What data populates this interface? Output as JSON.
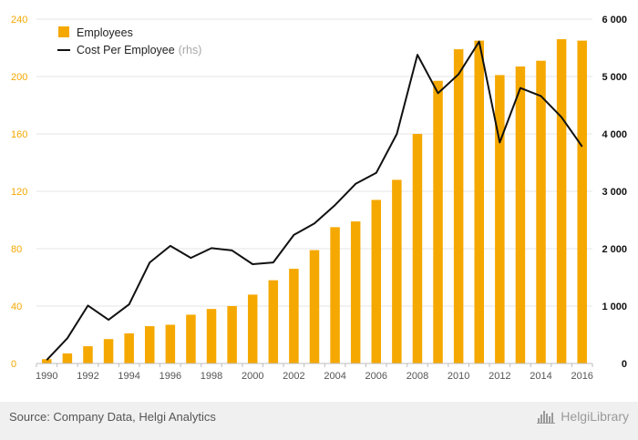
{
  "chart_data": {
    "type": "bar",
    "categories": [
      "1990",
      "1991",
      "1992",
      "1993",
      "1994",
      "1995",
      "1996",
      "1997",
      "1998",
      "1999",
      "2000",
      "2001",
      "2002",
      "2003",
      "2004",
      "2005",
      "2006",
      "2007",
      "2008",
      "2009",
      "2010",
      "2011",
      "2012",
      "2013",
      "2014",
      "2015",
      "2016"
    ],
    "series": [
      {
        "name": "Employees",
        "type": "bar",
        "axis": "left",
        "color": "#f5a800",
        "values": [
          3,
          7,
          12,
          17,
          21,
          26,
          27,
          34,
          38,
          40,
          48,
          58,
          66,
          79,
          95,
          99,
          114,
          128,
          160,
          197,
          219,
          225,
          201,
          207,
          211,
          226,
          225
        ]
      },
      {
        "name": "Cost Per Employee",
        "suffix": "(rhs)",
        "type": "line",
        "axis": "right",
        "color": "#111111",
        "values": [
          60,
          440,
          1010,
          760,
          1030,
          1760,
          2050,
          1840,
          2010,
          1970,
          1730,
          1760,
          2240,
          2440,
          2760,
          3130,
          3320,
          4000,
          5380,
          4710,
          5040,
          5610,
          3850,
          4800,
          4660,
          4290,
          3780
        ]
      }
    ],
    "x_tick_labels": [
      "1990",
      "1992",
      "1994",
      "1996",
      "1998",
      "2000",
      "2002",
      "2004",
      "2006",
      "2008",
      "2010",
      "2012",
      "2014",
      "2016"
    ],
    "y_left": {
      "ticks": [
        "0",
        "40",
        "80",
        "120",
        "160",
        "200",
        "240"
      ],
      "ylim": [
        0,
        240
      ],
      "tick_color": "#f5a800"
    },
    "y_right": {
      "ticks": [
        "0",
        "1 000",
        "2 000",
        "3 000",
        "4 000",
        "5 000",
        "6 000"
      ],
      "ylim": [
        0,
        6000
      ],
      "tick_color": "#111111"
    },
    "legend": {
      "placement": "top-left"
    },
    "grid": true
  },
  "footer": {
    "source": "Source: Company Data, Helgi Analytics",
    "brand": "HelgiLibrary"
  }
}
